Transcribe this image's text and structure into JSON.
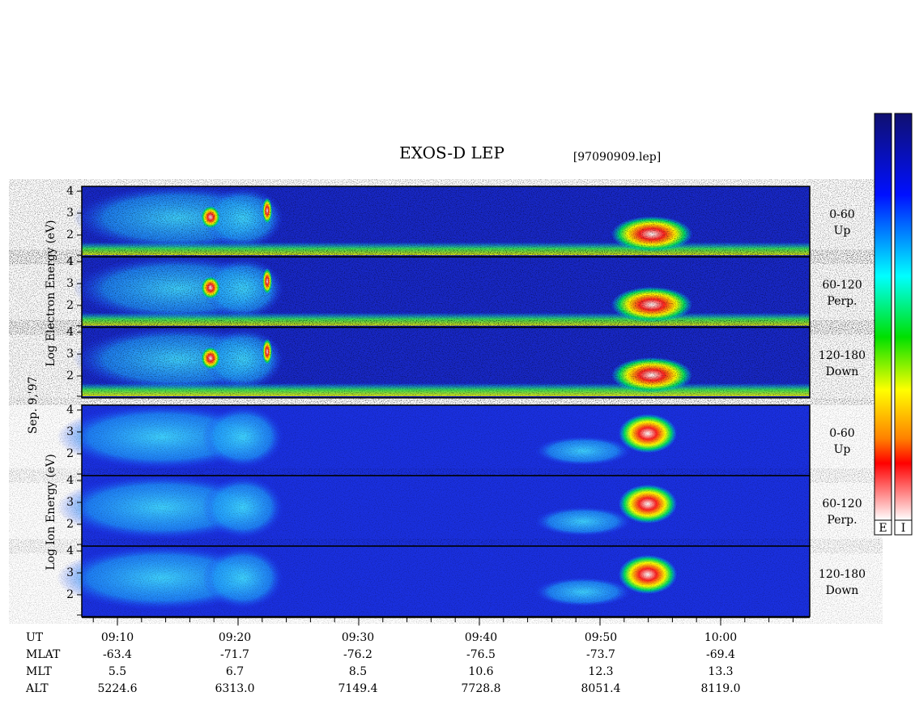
{
  "title": "EXOS-D LEP",
  "file": "[97090909.lep]",
  "electron_label": "Log  Electron  Energy (eV)",
  "date": "Sep. 9,'97",
  "ion_label": "Log  Ion  Energy (eV)",
  "panels": [
    {
      "yticks": [
        "4",
        "3",
        "2"
      ],
      "angle": "0-60",
      "direction": "Up"
    },
    {
      "yticks": [
        "4",
        "3",
        "2"
      ],
      "angle": "60-120",
      "direction": "Perp."
    },
    {
      "yticks": [
        "4",
        "3",
        "2"
      ],
      "angle": "120-180",
      "direction": "Down"
    },
    {
      "yticks": [
        "4",
        "3",
        "2"
      ],
      "angle": "0-60",
      "direction": "Up"
    },
    {
      "yticks": [
        "4",
        "3",
        "2"
      ],
      "angle": "60-120",
      "direction": "Perp."
    },
    {
      "yticks": [
        "4",
        "3",
        "2"
      ],
      "angle": "120-180",
      "direction": "Down"
    }
  ],
  "x_axis": {
    "rows": [
      {
        "name": "UT",
        "values": [
          "09:10",
          "09:20",
          "09:30",
          "09:40",
          "09:50",
          "10:00"
        ]
      },
      {
        "name": "MLAT",
        "values": [
          "-63.4",
          "-71.7",
          "-76.2",
          "-76.5",
          "-73.7",
          "-69.4"
        ]
      },
      {
        "name": "MLT",
        "values": [
          "5.5",
          "6.7",
          "8.5",
          "10.6",
          "12.3",
          "13.3"
        ]
      },
      {
        "name": "ALT",
        "values": [
          "5224.6",
          "6313.0",
          "7149.4",
          "7728.8",
          "8051.4",
          "8119.0"
        ]
      }
    ]
  },
  "colorbars": [
    "E",
    "I"
  ]
}
